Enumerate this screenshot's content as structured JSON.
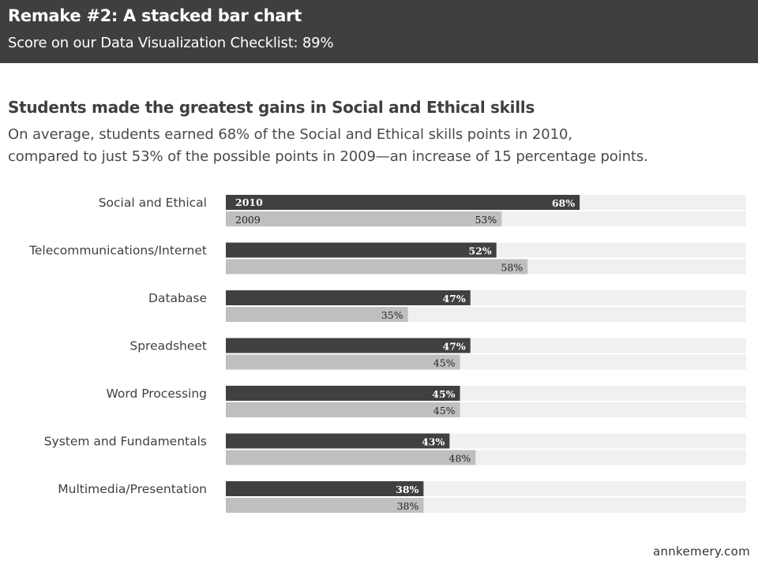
{
  "banner": {
    "title": "Remake #2: A stacked bar chart",
    "subtitle": "Score on our Data Visualization Checklist:  89%"
  },
  "headline": "Students made the greatest gains in Social and Ethical skills",
  "description": [
    "On average, students earned 68% of the Social and Ethical skills points in 2010,",
    "compared to just 53% of the possible points in 2009—an increase of 15 percentage points."
  ],
  "credit": "annkemery.com",
  "colors": {
    "series_2010": "#404040",
    "series_2009": "#bfbfbf",
    "track": "#f0f0f0",
    "banner": "#3f3f3f"
  },
  "chart_data": {
    "type": "bar",
    "orientation": "horizontal",
    "xlim": [
      0,
      100
    ],
    "unit": "%",
    "grid": false,
    "legend": "inline labels on first category",
    "categories": [
      "Social and Ethical",
      "Telecommunications/Internet",
      "Database",
      "Spreadsheet",
      "Word Processing",
      "System and Fundamentals",
      "Multimedia/Presentation"
    ],
    "series": [
      {
        "name": "2010",
        "values": [
          68,
          52,
          47,
          47,
          45,
          43,
          38
        ]
      },
      {
        "name": "2009",
        "values": [
          53,
          58,
          35,
          45,
          45,
          48,
          38
        ]
      }
    ]
  }
}
